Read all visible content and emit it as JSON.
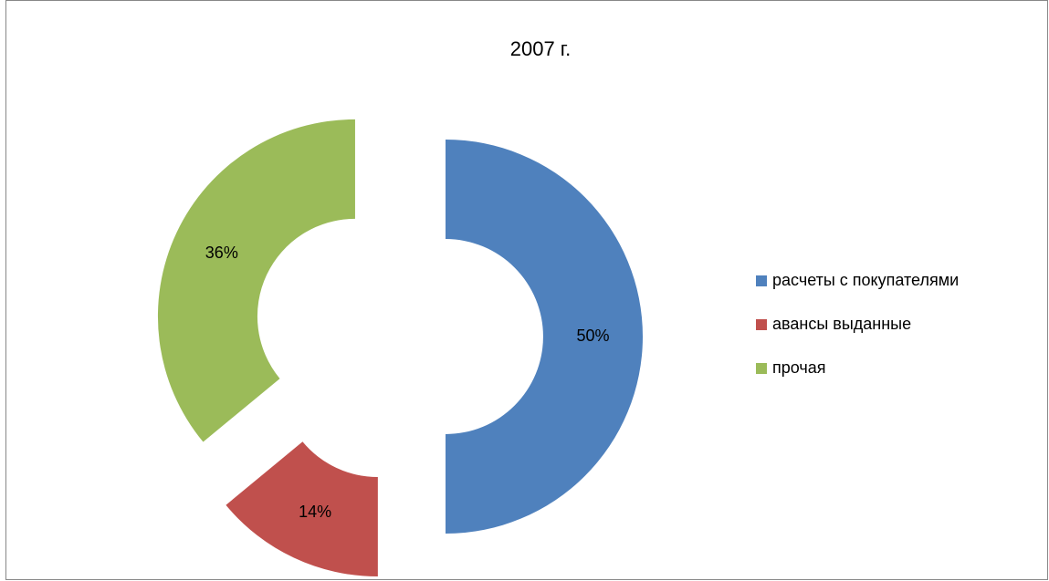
{
  "chart_data": {
    "type": "donut",
    "title": "2007 г.",
    "categories": [
      "расчеты с покупателями",
      "авансы выданные",
      "прочая"
    ],
    "values": [
      50,
      14,
      36
    ],
    "value_labels": [
      "50%",
      "14%",
      "36%"
    ],
    "colors": [
      "#4f81bd",
      "#c0504d",
      "#9bbb59"
    ],
    "legend": "right"
  }
}
